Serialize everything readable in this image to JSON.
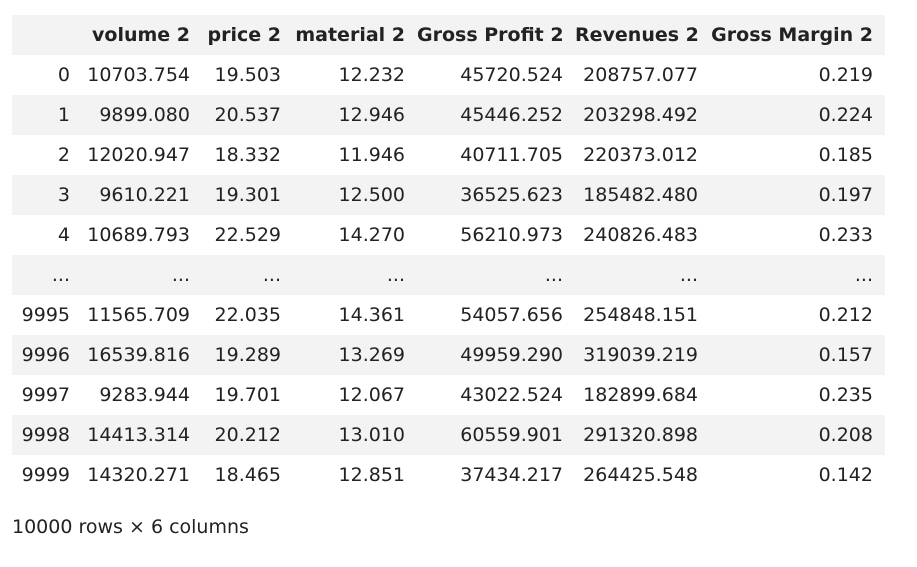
{
  "table": {
    "columns": [
      "",
      "volume 2",
      "price 2",
      "material 2",
      "Gross Profit 2",
      "Revenues 2",
      "Gross Margin 2"
    ],
    "rows": [
      [
        "0",
        "10703.754",
        "19.503",
        "12.232",
        "45720.524",
        "208757.077",
        "0.219"
      ],
      [
        "1",
        "9899.080",
        "20.537",
        "12.946",
        "45446.252",
        "203298.492",
        "0.224"
      ],
      [
        "2",
        "12020.947",
        "18.332",
        "11.946",
        "40711.705",
        "220373.012",
        "0.185"
      ],
      [
        "3",
        "9610.221",
        "19.301",
        "12.500",
        "36525.623",
        "185482.480",
        "0.197"
      ],
      [
        "4",
        "10689.793",
        "22.529",
        "14.270",
        "56210.973",
        "240826.483",
        "0.233"
      ],
      [
        "...",
        "...",
        "...",
        "...",
        "...",
        "...",
        "..."
      ],
      [
        "9995",
        "11565.709",
        "22.035",
        "14.361",
        "54057.656",
        "254848.151",
        "0.212"
      ],
      [
        "9996",
        "16539.816",
        "19.289",
        "13.269",
        "49959.290",
        "319039.219",
        "0.157"
      ],
      [
        "9997",
        "9283.944",
        "19.701",
        "12.067",
        "43022.524",
        "182899.684",
        "0.235"
      ],
      [
        "9998",
        "14413.314",
        "20.212",
        "13.010",
        "60559.901",
        "291320.898",
        "0.208"
      ],
      [
        "9999",
        "14320.271",
        "18.465",
        "12.851",
        "37434.217",
        "264425.548",
        "0.142"
      ]
    ]
  },
  "footer": {
    "shape_text": "10000 rows × 6 columns"
  },
  "colors": {
    "stripe": "#f3f3f3",
    "text": "#222222"
  }
}
